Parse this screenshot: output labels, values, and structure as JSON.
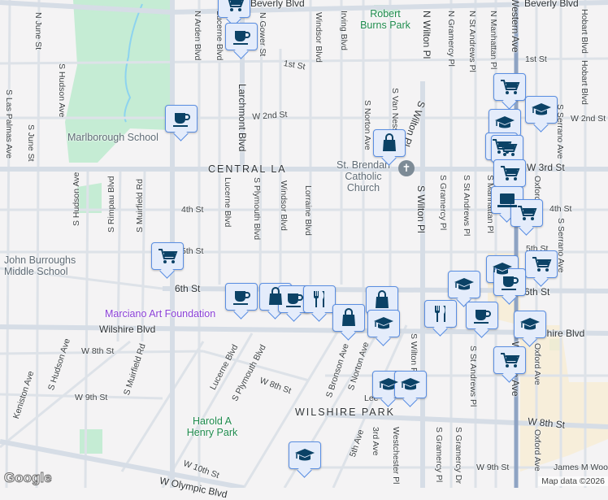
{
  "map": {
    "colors": {
      "background": "#f4f3f4",
      "road": "#dae0e7",
      "highway": "#8ea3c3",
      "park": "#c5ecd4",
      "marker_fill": "#e4ecfb",
      "marker_border": "#5a8ee2",
      "icon": "#0b4266"
    },
    "streets": {
      "beverly": "Beverly Blvd",
      "beverly2": "Beverly Blvd",
      "first": "1st St",
      "first2": "1st St",
      "w2nd": "W 2nd St",
      "w2nd2": "W 2nd St",
      "w3rd": "W 3rd St",
      "fourth": "4th St",
      "fourth2": "4th St",
      "fifth": "5th St",
      "fifth2": "5th St",
      "sixth": "6th St",
      "sixth2": "6th St",
      "wilshire": "Wilshire Blvd",
      "wilshire2": "Wilshire Blvd",
      "w8th": "W 8th St",
      "w8th2": "W 8th St",
      "w8th3": "W 8th St",
      "w9th": "W 9th St",
      "w9th2": "W 9th St",
      "w10th": "W 10th St",
      "olympic": "W Olympic Blvd",
      "lee": "Lee",
      "james": "James M Woo",
      "njune": "N June St",
      "shudson": "S Hudson Ave",
      "slaspalmas": "S Las Palmas Ave",
      "sjune": "S June St",
      "narden": "N Arden Blvd",
      "lucerne_n": "Lucerne Blvd",
      "ngower": "N Gower St",
      "larchmont": "Larchmont Blvd",
      "shudson2": "S Hudson Ave",
      "srimpau": "S Rimpau Blvd",
      "smuirfield": "S Muirfield Rd",
      "lucerne": "Lucerne Blvd",
      "splymouth": "S Plymouth Blvd",
      "windsor": "Windsor Blvd",
      "windsor_n": "Windsor Blvd",
      "irving": "Irving Blvd",
      "lorraine": "Lorraine Blvd",
      "snorton": "S Norton Ave",
      "svanness": "S Van Ness Ave",
      "nwilton": "N Wilton Pl",
      "swiltonpl": "S Wilton Pl",
      "swilton": "S Wilton Pl",
      "ngramercy": "N Gramercy Pl",
      "nstandrews": "N St Andrews Pl",
      "nmanhattan": "N Manhattan Pl",
      "western": "Western Ave",
      "western2": "Western Ave",
      "hobart": "Hobart Blvd",
      "hobart2": "Hobart Blvd",
      "sserrano": "S Serrano Ave",
      "sserrano2": "S Serrano Ave",
      "oxford": "Oxford Ave",
      "oxford2": "Oxford Ave",
      "oxford3": "Oxford Ave",
      "sgramercy": "S Gramercy Pl",
      "sstandrews": "S St Andrews Pl",
      "sstandrews2": "S St Andrews Pl",
      "smanhattan": "S Manhattan Pl",
      "keniston": "Keniston Ave",
      "shudson3": "S Hudson Ave",
      "smuirfield2": "S Muirfield Rd",
      "lucerne2": "Lucerne Blvd",
      "splymouth2": "S Plymouth Blvd",
      "sbronson": "S Bronson Ave",
      "snorton2": "S Norton Ave",
      "swilton2": "S Wilton Pl",
      "fifthave": "5th Ave",
      "thirdave": "3rd Ave",
      "westchester": "Westchester Pl",
      "sgramercy2": "S Gramercy Pl",
      "sgramercydr": "S Gramercy Dr"
    },
    "areas": {
      "central_la": "CENTRAL LA",
      "wilshire_park": "WILSHIRE PARK"
    },
    "places": {
      "robert_burns_park": "Robert Burns Park",
      "marlborough": "Marlborough School",
      "st_brendan": "St. Brendan Catholic Church",
      "john_burroughs": "John Burroughs Middle School",
      "marciano": "Marciano Art Foundation",
      "harold_henry_park": "Harold A Henry Park"
    },
    "markers": [
      "cart",
      "coffee",
      "coffee",
      "cart",
      "graduation-cap",
      "graduation-cap",
      "cart",
      "cart",
      "shopping-bag",
      "cart",
      "laptop",
      "cart",
      "cart",
      "coffee",
      "shopping-bag",
      "coffee",
      "fork-knife",
      "shopping-bag",
      "graduation-cap",
      "cart",
      "graduation-cap",
      "coffee",
      "shopping-bag",
      "graduation-cap",
      "fork-knife",
      "coffee",
      "graduation-cap",
      "cart",
      "graduation-cap",
      "graduation-cap",
      "graduation-cap"
    ],
    "google_logo": "Google",
    "attribution": "Map data ©2026"
  }
}
